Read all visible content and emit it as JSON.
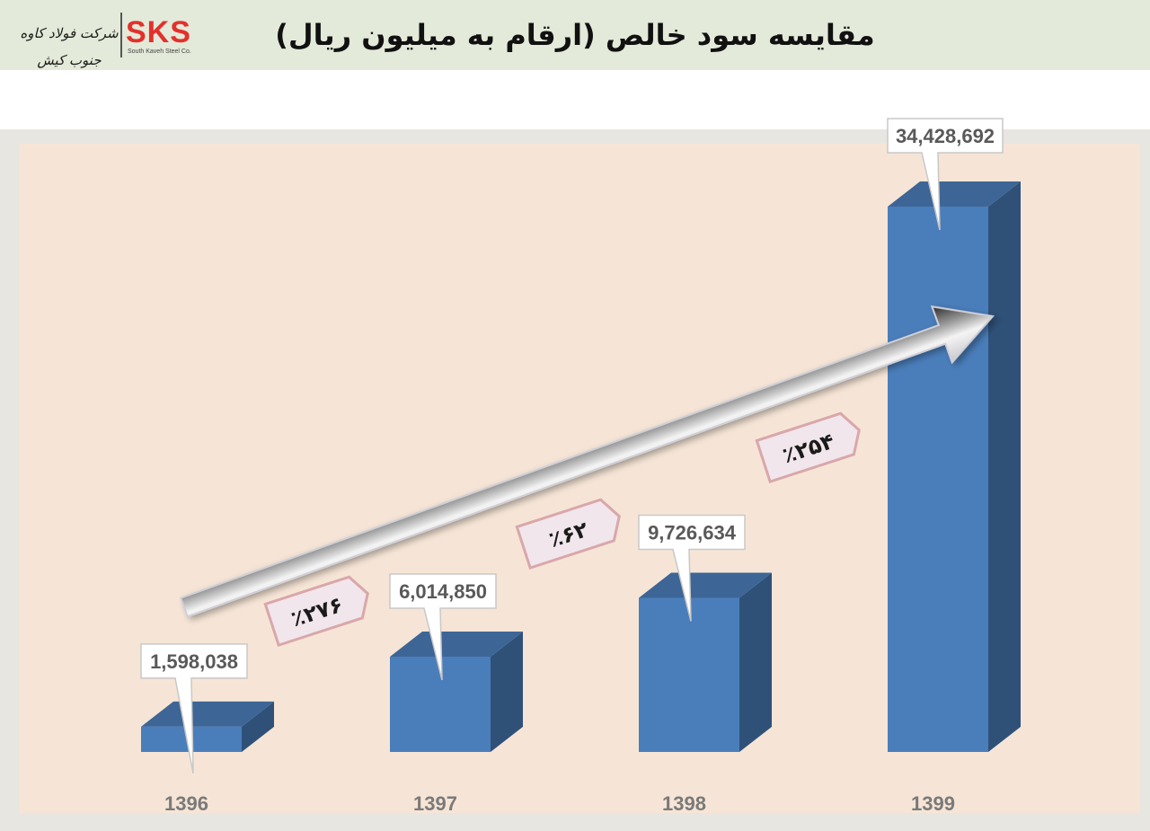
{
  "header": {
    "title": "مقایسه سود خالص (ارقام به میلیون ریال)",
    "logo_text": "SKS",
    "logo_subtext": "South Kaveh Steel Co.",
    "logo_script": "شرکت فولاد کاوه جنوب کیش"
  },
  "colors": {
    "bar_front": "#4a7ebb",
    "bar_top": "#3d6596",
    "bar_side": "#2f5178",
    "plot_bg": "#f6e5d6",
    "callout_border": "#d9a7aa",
    "callout_fill": "#f1e6ec"
  },
  "chart_data": {
    "type": "bar",
    "categories": [
      "1396",
      "1397",
      "1398",
      "1399"
    ],
    "values": [
      1598038,
      6014850,
      9726634,
      34428692
    ],
    "data_labels": [
      "1,598,038",
      "6,014,850",
      "9,726,634",
      "34,428,692"
    ],
    "growth_labels": [
      "٪۲۷۶",
      "٪۶۲",
      "٪۲۵۴"
    ],
    "ylim": [
      0,
      34428692
    ],
    "grid": false,
    "legend": "none"
  }
}
